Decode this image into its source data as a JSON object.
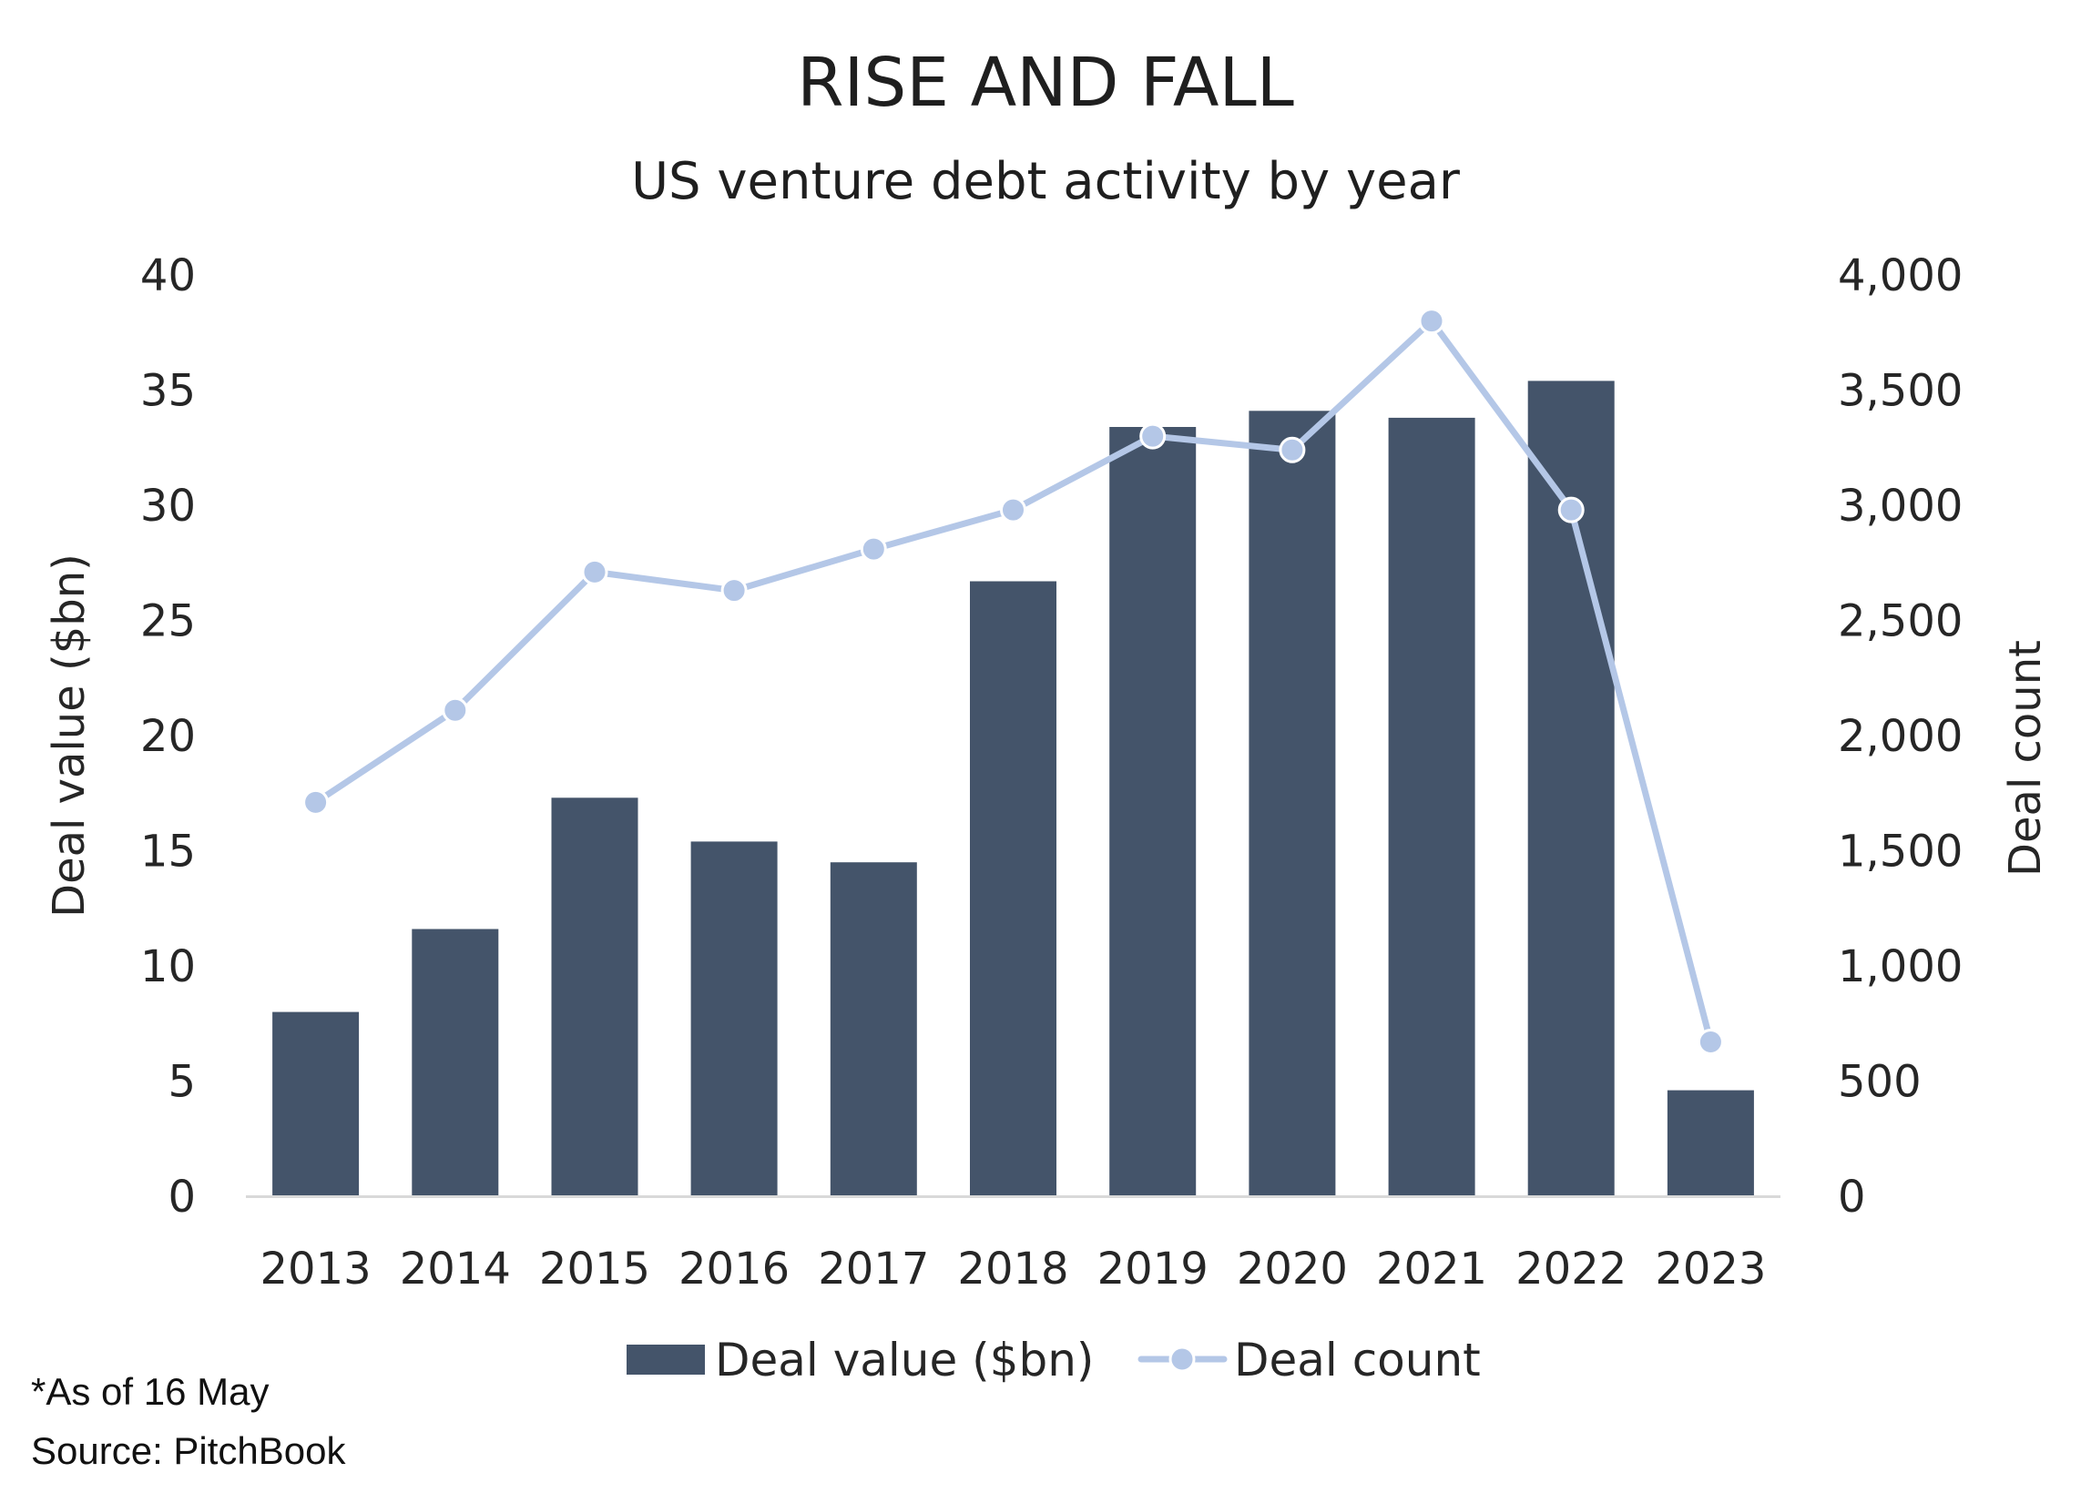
{
  "chart_data": {
    "type": "bar",
    "title": "RISE AND FALL",
    "subtitle": "US venture debt activity by year",
    "categories": [
      "2013",
      "2014",
      "2015",
      "2016",
      "2017",
      "2018",
      "2019",
      "2020",
      "2021",
      "2022",
      "2023"
    ],
    "series": [
      {
        "name": "Deal value ($bn)",
        "type": "bar",
        "axis": "left",
        "color": "#44546a",
        "values": [
          8.0,
          11.6,
          17.3,
          15.4,
          14.5,
          26.7,
          33.4,
          34.1,
          33.8,
          35.4,
          4.6
        ]
      },
      {
        "name": "Deal count",
        "type": "line",
        "axis": "right",
        "color": "#b4c7e7",
        "values": [
          1710,
          2110,
          2710,
          2630,
          2810,
          2980,
          3300,
          3240,
          3800,
          2980,
          670
        ]
      }
    ],
    "y_left": {
      "label": "Deal value ($bn)",
      "range": [
        0,
        40
      ],
      "ticks": [
        "0",
        "5",
        "10",
        "15",
        "20",
        "25",
        "30",
        "35",
        "40"
      ]
    },
    "y_right": {
      "label": "Deal count",
      "range": [
        0,
        4000
      ],
      "ticks": [
        "0",
        "500",
        "1,000",
        "1,500",
        "2,000",
        "2,500",
        "3,000",
        "3,500",
        "4,000"
      ]
    },
    "grid": false,
    "legend": "bottom-center"
  },
  "footnotes": {
    "note": "*As of 16 May",
    "source": "Source: PitchBook"
  }
}
